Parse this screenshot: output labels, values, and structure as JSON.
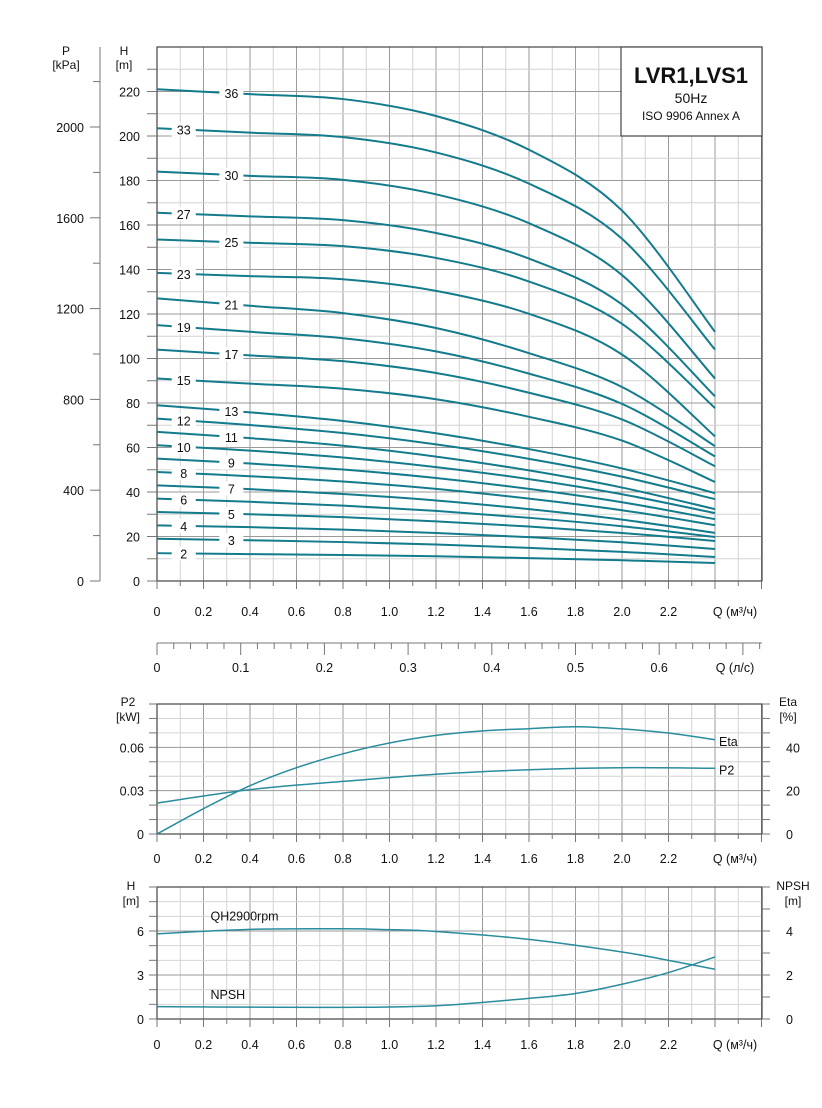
{
  "title_box": {
    "model": "LVR1,LVS1",
    "frequency": "50Hz",
    "standard": "ISO 9906 Annex A"
  },
  "colors": {
    "curve": "#137b8c",
    "grid": "#d4d4d4",
    "grid_major": "#9a9a9a"
  },
  "chart_data": [
    {
      "type": "line",
      "title": "",
      "xlabel": "Q (м³/ч)",
      "ylabel": "H [m]",
      "ylabel_secondary": "P [kPa]",
      "xlim": [
        0,
        2.6
      ],
      "ylim": [
        0,
        240
      ],
      "ylim_secondary_kpa": [
        0,
        2354
      ],
      "x_ticks": [
        "0",
        "0.2",
        "0.4",
        "0.6",
        "0.8",
        "1.0",
        "1.2",
        "1.4",
        "1.6",
        "1.8",
        "2.0",
        "2.2"
      ],
      "y_ticks": [
        "0",
        "20",
        "40",
        "60",
        "80",
        "100",
        "120",
        "140",
        "160",
        "180",
        "200",
        "220"
      ],
      "y2_ticks": [
        "0",
        "400",
        "800",
        "1200",
        "1600",
        "2000"
      ],
      "x2_axis": {
        "label": "Q (л/с)",
        "ticks": [
          "0",
          "0.1",
          "0.2",
          "0.3",
          "0.4",
          "0.5",
          "0.6"
        ]
      },
      "grid": true,
      "x": [
        0,
        0.4,
        0.8,
        1.2,
        1.6,
        2.0,
        2.4
      ],
      "series": [
        {
          "name": "36",
          "values": [
            221,
            218.8,
            216.6,
            209,
            193.8,
            166.5,
            112
          ]
        },
        {
          "name": "33",
          "values": [
            203.5,
            201.5,
            199.5,
            192.6,
            178.6,
            153.8,
            104
          ]
        },
        {
          "name": "30",
          "values": [
            184,
            182.1,
            180.3,
            173.8,
            160.8,
            137.5,
            91
          ]
        },
        {
          "name": "27",
          "values": [
            165.5,
            163.9,
            162.2,
            156.4,
            144.9,
            124.3,
            83
          ]
        },
        {
          "name": "25",
          "values": [
            153.5,
            152,
            150.5,
            145.2,
            134.6,
            115.6,
            77.7
          ]
        },
        {
          "name": "23",
          "values": [
            138.5,
            137,
            135.6,
            130.4,
            120.1,
            101.8,
            65
          ]
        },
        {
          "name": "21",
          "values": [
            127,
            123.7,
            120.4,
            113.7,
            102.4,
            87.2,
            60.6
          ]
        },
        {
          "name": "19",
          "values": [
            115,
            112,
            109.1,
            103.2,
            93.2,
            79.6,
            56
          ]
        },
        {
          "name": "17",
          "values": [
            104,
            101.4,
            98.8,
            93.5,
            84.6,
            72.6,
            51.6
          ]
        },
        {
          "name": "15",
          "values": [
            91,
            88.7,
            86.4,
            81.7,
            73.8,
            63.1,
            44.5
          ]
        },
        {
          "name": "13",
          "values": [
            79,
            75.8,
            71.9,
            66.4,
            59.3,
            50.6,
            39.5
          ]
        },
        {
          "name": "12",
          "values": [
            73,
            70.1,
            66.5,
            61.4,
            54.9,
            46.9,
            36.8
          ]
        },
        {
          "name": "11",
          "values": [
            67,
            64.2,
            60.8,
            55.9,
            49.7,
            42,
            32.3
          ]
        },
        {
          "name": "10",
          "values": [
            61,
            58.6,
            55.5,
            51.2,
            45.8,
            39,
            30.5
          ]
        },
        {
          "name": "9",
          "values": [
            55,
            52.8,
            50.1,
            46.3,
            41.4,
            35.4,
            27.8
          ]
        },
        {
          "name": "8",
          "values": [
            49,
            47.1,
            44.7,
            41.4,
            37,
            31.8,
            25.1
          ]
        },
        {
          "name": "7",
          "values": [
            43,
            41.3,
            39.1,
            36.2,
            32.3,
            27.6,
            21.6
          ]
        },
        {
          "name": "6",
          "values": [
            37,
            35.6,
            33.9,
            31.5,
            28.4,
            24.6,
            19.8
          ]
        },
        {
          "name": "5",
          "values": [
            31,
            30,
            28.7,
            26.8,
            24.5,
            21.6,
            18
          ]
        },
        {
          "name": "4",
          "values": [
            25,
            24.2,
            23.1,
            21.6,
            19.7,
            17.4,
            14.4
          ]
        },
        {
          "name": "3",
          "values": [
            19,
            18.3,
            17.5,
            16.4,
            14.9,
            13.1,
            10.8
          ]
        },
        {
          "name": "2",
          "values": [
            12.5,
            12.1,
            11.7,
            11.1,
            10.3,
            9.3,
            8.1
          ]
        }
      ]
    },
    {
      "type": "line",
      "title": "",
      "xlabel": "Q (м³/ч)",
      "ylabel": "P2 [kW]",
      "ylabel_secondary": "Eta [%]",
      "xlim": [
        0,
        2.6
      ],
      "ylim": [
        0,
        0.09
      ],
      "ylim_secondary": [
        0,
        60
      ],
      "x_ticks": [
        "0",
        "0.2",
        "0.4",
        "0.6",
        "0.8",
        "1.0",
        "1.2",
        "1.4",
        "1.6",
        "1.8",
        "2.0",
        "2.2"
      ],
      "y_ticks": [
        "0",
        "0.03",
        "0.06"
      ],
      "y2_ticks": [
        "0",
        "20",
        "40"
      ],
      "grid": true,
      "series": [
        {
          "name": "Eta",
          "axis": "secondary",
          "x": [
            0,
            0.2,
            0.4,
            0.6,
            0.8,
            1.0,
            1.2,
            1.4,
            1.6,
            1.8,
            2.0,
            2.2,
            2.4
          ],
          "values": [
            0,
            11.7,
            22.3,
            30.6,
            37,
            42,
            45.5,
            47.6,
            48.6,
            49.5,
            48.5,
            46.6,
            43.5
          ]
        },
        {
          "name": "P2",
          "axis": "primary",
          "x": [
            0,
            0.4,
            0.8,
            1.2,
            1.6,
            2.0,
            2.4
          ],
          "values": [
            0.0214,
            0.0307,
            0.0364,
            0.0414,
            0.0445,
            0.0459,
            0.0455
          ]
        }
      ]
    },
    {
      "type": "line",
      "title": "",
      "xlabel": "Q (м³/ч)",
      "ylabel": "H [m]",
      "ylabel_secondary": "NPSH [m]",
      "xlim": [
        0,
        2.6
      ],
      "ylim": [
        0,
        9
      ],
      "ylim_secondary": [
        0,
        6
      ],
      "x_ticks": [
        "0",
        "0.2",
        "0.4",
        "0.6",
        "0.8",
        "1.0",
        "1.2",
        "1.4",
        "1.6",
        "1.8",
        "2.0",
        "2.2"
      ],
      "y_ticks": [
        "0",
        "3",
        "6"
      ],
      "y2_ticks": [
        "0",
        "2",
        "4"
      ],
      "grid": true,
      "series": [
        {
          "name": "QH2900rpm",
          "axis": "primary",
          "x": [
            0,
            0.4,
            0.8,
            1.0,
            1.2,
            1.6,
            2.0,
            2.2,
            2.4
          ],
          "values": [
            5.81,
            6.11,
            6.15,
            6.09,
            5.97,
            5.43,
            4.57,
            4.0,
            3.39
          ]
        },
        {
          "name": "NPSH",
          "axis": "secondary",
          "x": [
            0,
            0.4,
            0.8,
            1.2,
            1.6,
            1.8,
            2.0,
            2.2,
            2.4
          ],
          "values": [
            0.56,
            0.54,
            0.53,
            0.6,
            0.94,
            1.16,
            1.58,
            2.11,
            2.82
          ]
        }
      ]
    }
  ],
  "labels": {
    "main_p": "P",
    "main_p_unit": "[kPa]",
    "main_h": "H",
    "main_h_unit": "[m]",
    "p2": "P2",
    "p2_unit": "[kW]",
    "eta": "Eta",
    "eta_unit": "[%]",
    "h3": "H",
    "h3_unit": "[m]",
    "npsh": "NPSH",
    "npsh_unit": "[m]"
  }
}
